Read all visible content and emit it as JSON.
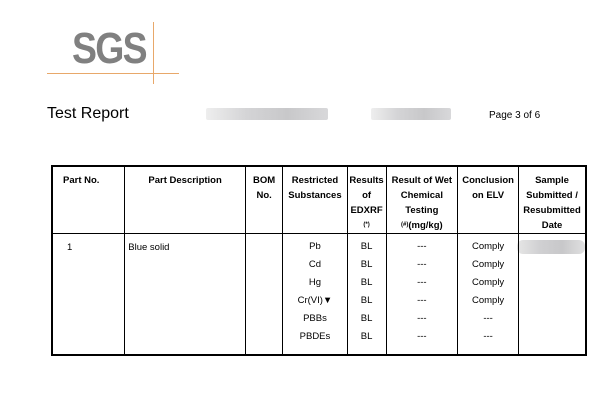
{
  "header": {
    "logo": "SGS",
    "title": "Test Report",
    "page": "Page 3 of 6",
    "accent": "#e8a86a"
  },
  "table": {
    "headers": [
      "Part No.",
      "Part Description",
      "BOM No.",
      "Restricted Substances",
      "Results of EDXRF",
      "Result of Wet Chemical Testing",
      "Conclusion on ELV",
      "Sample Submitted / Resubmitted Date"
    ],
    "edxrf_note": "(*)",
    "wet_note": "(#)",
    "wet_unit": "(mg/kg)",
    "row": {
      "part_no": "1",
      "description": "Blue solid",
      "bom": "",
      "substances": [
        "Pb",
        "Cd",
        "Hg",
        "Cr(VI)▼",
        "PBBs",
        "PBDEs"
      ],
      "edxrf": [
        "BL",
        "BL",
        "BL",
        "BL",
        "BL",
        "BL"
      ],
      "wet": [
        "---",
        "---",
        "---",
        "---",
        "---",
        "---"
      ],
      "conclusion": [
        "Comply",
        "Comply",
        "Comply",
        "Comply",
        "---",
        "---"
      ]
    }
  }
}
